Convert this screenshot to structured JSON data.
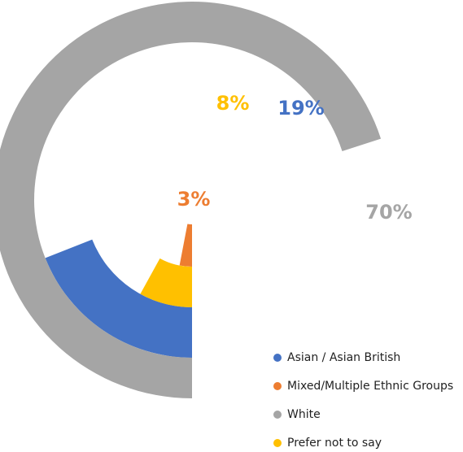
{
  "chart_data": {
    "type": "radial-bar",
    "series": [
      {
        "name": "Asian / Asian British",
        "color": "#4472c4",
        "values": [
          19
        ],
        "value_labels": [
          "19%"
        ]
      },
      {
        "name": "Mixed/Multiple Ethnic Groups",
        "color": "#ed7d31",
        "values": [
          3
        ],
        "value_labels": [
          "3%"
        ]
      },
      {
        "name": "White",
        "color": "#a5a5a5",
        "values": [
          70
        ],
        "value_labels": [
          "70%"
        ]
      },
      {
        "name": "Prefer not to say",
        "color": "#ffc000",
        "values": [
          8
        ],
        "value_labels": [
          "8%"
        ]
      }
    ],
    "legend": "bottom-right"
  }
}
